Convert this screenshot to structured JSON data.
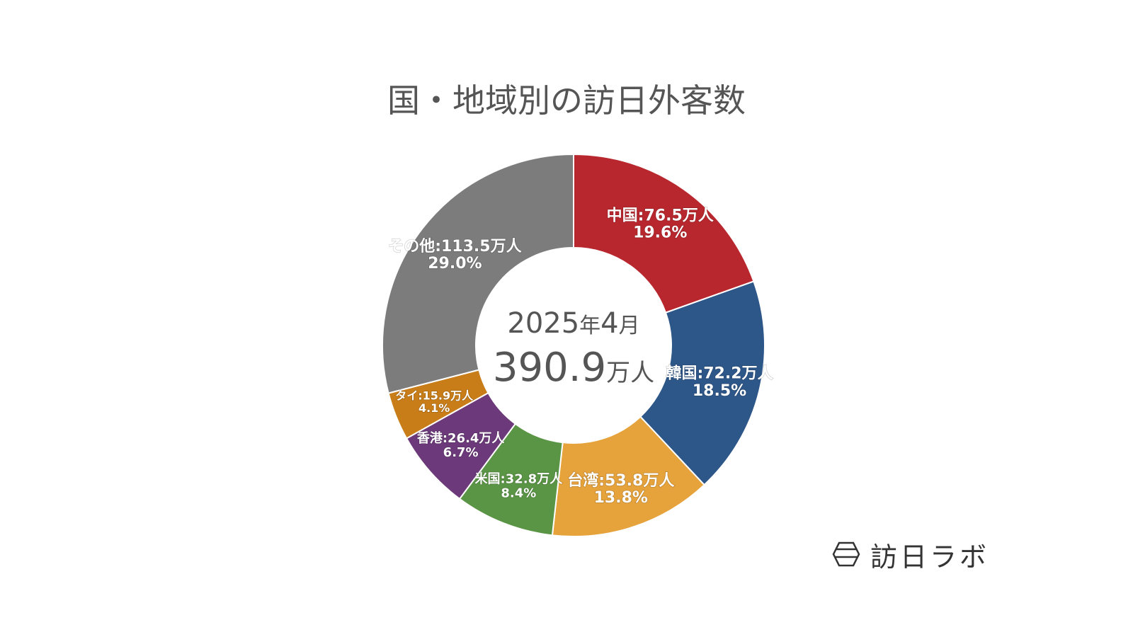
{
  "chart_data": {
    "type": "pie",
    "title": "国・地域別の訪日外客数",
    "center": {
      "period_value": "2025",
      "period_unit_year": "年",
      "period_month": "4",
      "period_unit_month": "月",
      "total_value": "390.9",
      "total_unit": "万人"
    },
    "unit": "万人",
    "slices": [
      {
        "name": "中国",
        "value": 76.5,
        "percent": "19.6%",
        "value_label": "中国:76.5万人",
        "color": "#b9272e"
      },
      {
        "name": "韓国",
        "value": 72.2,
        "percent": "18.5%",
        "value_label": "韓国:72.2万人",
        "color": "#2d5689"
      },
      {
        "name": "台湾",
        "value": 53.8,
        "percent": "13.8%",
        "value_label": "台湾:53.8万人",
        "color": "#e6a23b"
      },
      {
        "name": "米国",
        "value": 32.8,
        "percent": "8.4%",
        "value_label": "米国:32.8万人",
        "color": "#5a9545"
      },
      {
        "name": "香港",
        "value": 26.4,
        "percent": "6.7%",
        "value_label": "香港:26.4万人",
        "color": "#6c3a7a"
      },
      {
        "name": "タイ",
        "value": 15.9,
        "percent": "4.1%",
        "value_label": "タイ:15.9万人",
        "color": "#c87d18"
      },
      {
        "name": "その他",
        "value": 113.5,
        "percent": "29.0%",
        "value_label": "その他:113.5万人",
        "color": "#7b7c7b"
      }
    ]
  },
  "brand": {
    "name": "訪日ラボ",
    "icon": "hexagon-logo-icon"
  }
}
